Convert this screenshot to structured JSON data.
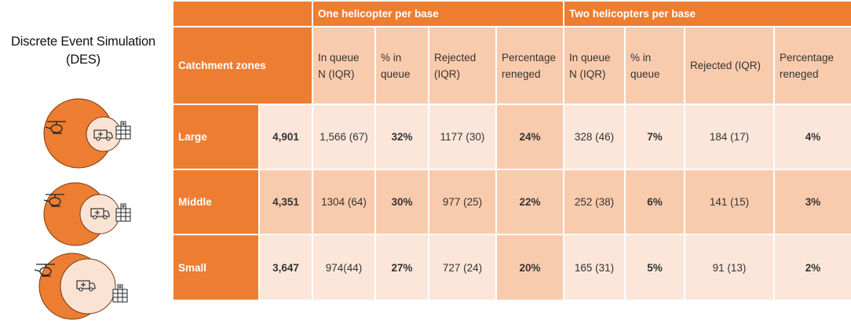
{
  "left_panel": {
    "title_line1": "Discrete Event Simulation",
    "title_line2": "(DES)",
    "diagram_icons": [
      "helicopter-icon",
      "ambulance-icon",
      "hospital-icon"
    ],
    "colors": {
      "outer_circle": "#ed7d31",
      "inner_circle": "#fbe3d4",
      "outline": "#7a3a12"
    }
  },
  "header": {
    "group_one": "One helicopter per base",
    "group_two": "Two helicopters per base",
    "catchment_label": "Catchment zones",
    "col_in_queue_l1": "In queue",
    "col_in_queue_l2": "N (IQR)",
    "col_pct_queue_l1": "% in",
    "col_pct_queue_l2": "queue",
    "col_rejected_l1": "Rejected",
    "col_rejected_l2": "(IQR)",
    "col_reneged_l1": "Percentage",
    "col_reneged_l2": "reneged",
    "col2_in_queue_l1": "In queue",
    "col2_in_queue_l2": "N (IQR)",
    "col2_pct_queue_l1": "% in",
    "col2_pct_queue_l2": "queue",
    "col2_rejected": "Rejected (IQR)",
    "col2_reneged_l1": "Percentage",
    "col2_reneged_l2": "reneged"
  },
  "colors": {
    "orange": "#ed7d31",
    "pink": "#f9cbad",
    "light": "#fce6da"
  },
  "chart_data": {
    "type": "table",
    "column_groups": [
      "One helicopter per base",
      "Two helicopters per base"
    ],
    "columns": [
      "In queue N (IQR)",
      "% in queue",
      "Rejected (IQR)",
      "Percentage reneged",
      "In queue N (IQR)",
      "% in queue",
      "Rejected (IQR)",
      "Percentage reneged"
    ],
    "rows": [
      {
        "zone": "Large",
        "total": "4,901",
        "one": {
          "in_queue": "1,566 (67)",
          "pct_queue": "32%",
          "rejected": "1177 (30)",
          "reneged": "24%"
        },
        "two": {
          "in_queue": "328 (46)",
          "pct_queue": "7%",
          "rejected": "184 (17)",
          "reneged": "4%"
        }
      },
      {
        "zone": "Middle",
        "total": "4,351",
        "one": {
          "in_queue": "1304 (64)",
          "pct_queue": "30%",
          "rejected": "977 (25)",
          "reneged": "22%"
        },
        "two": {
          "in_queue": "252 (38)",
          "pct_queue": "6%",
          "rejected": "141 (15)",
          "reneged": "3%"
        }
      },
      {
        "zone": "Small",
        "total": "3,647",
        "one": {
          "in_queue": "974(44)",
          "pct_queue": "27%",
          "rejected": "727 (24)",
          "reneged": "20%"
        },
        "two": {
          "in_queue": "165 (31)",
          "pct_queue": "5%",
          "rejected": "91 (13)",
          "reneged": "2%"
        }
      }
    ]
  }
}
